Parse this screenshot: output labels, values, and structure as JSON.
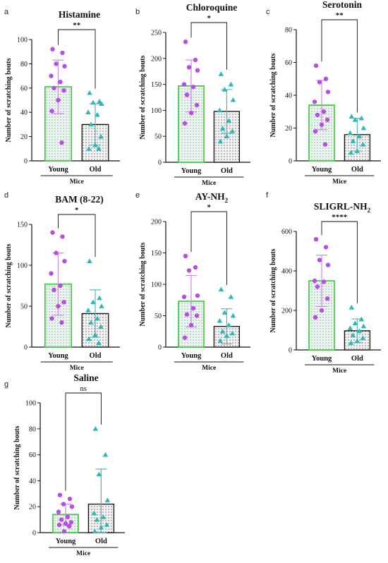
{
  "colors": {
    "young_bar_edge": "#33cc33",
    "young_bar_fill": "#e8f8e8",
    "young_dots": "#8f5fd6",
    "young_points": "#b64ee6",
    "old_bar_edge": "#111111",
    "old_bar_fill": "#f2f2f2",
    "old_dots": "#444444",
    "old_points": "#2bb8b8",
    "error_young": "#c98ae8",
    "error_old": "#5fb3b3"
  },
  "chart_data": [
    {
      "type": "bar",
      "panel": "a",
      "title": "Histamine",
      "ylabel": "Number of scratching bouts",
      "xlabel": "Mice",
      "categories": [
        "Young",
        "Old"
      ],
      "ylim": [
        0,
        100
      ],
      "yticks": [
        0,
        20,
        40,
        60,
        80,
        100
      ],
      "values": [
        61,
        30
      ],
      "errors": [
        22,
        17
      ],
      "significance": "**",
      "points": [
        [
          92,
          89,
          80,
          78,
          70,
          65,
          60,
          58,
          50,
          41,
          15
        ],
        [
          56,
          49,
          48,
          47,
          40,
          38,
          30,
          20,
          13,
          10,
          10
        ]
      ]
    },
    {
      "type": "bar",
      "panel": "b",
      "title": "Chloroquine",
      "ylabel": "Number of scratching bouts",
      "xlabel": "Mice",
      "categories": [
        "Young",
        "Old"
      ],
      "ylim": [
        0,
        250
      ],
      "yticks": [
        0,
        50,
        100,
        150,
        200,
        250
      ],
      "values": [
        147,
        98
      ],
      "errors": [
        50,
        42
      ],
      "significance": "*",
      "points": [
        [
          232,
          197,
          183,
          177,
          150,
          145,
          130,
          110,
          95,
          75
        ],
        [
          170,
          150,
          140,
          120,
          100,
          80,
          65,
          60,
          50,
          40
        ]
      ]
    },
    {
      "type": "bar",
      "panel": "c",
      "title": "Serotonin",
      "ylabel": "Number of scratching bouts",
      "xlabel": "Mice",
      "categories": [
        "Young",
        "Old"
      ],
      "ylim": [
        0,
        80
      ],
      "yticks": [
        0,
        20,
        40,
        60,
        80
      ],
      "values": [
        34,
        16
      ],
      "errors": [
        15,
        10
      ],
      "significance": "**",
      "points": [
        [
          58,
          50,
          48,
          42,
          36,
          30,
          28,
          25,
          22,
          18,
          10
        ],
        [
          27,
          26,
          25,
          20,
          17,
          15,
          12,
          10,
          6,
          5
        ]
      ]
    },
    {
      "type": "bar",
      "panel": "d",
      "title": "BAM (8-22)",
      "ylabel": "Number of scratching bouts",
      "xlabel": "Mice",
      "categories": [
        "Young",
        "Old"
      ],
      "ylim": [
        0,
        150
      ],
      "yticks": [
        0,
        50,
        100,
        150
      ],
      "values": [
        77,
        41
      ],
      "errors": [
        38,
        29
      ],
      "significance": "*",
      "points": [
        [
          140,
          135,
          115,
          105,
          90,
          75,
          70,
          55,
          50,
          35,
          30
        ],
        [
          105,
          60,
          55,
          50,
          45,
          35,
          30,
          25,
          15,
          10,
          5
        ]
      ]
    },
    {
      "type": "bar",
      "panel": "e",
      "title": "AY-NH",
      "title_sub": "2",
      "ylabel": "Number of scratching bouts",
      "xlabel": "Mice",
      "categories": [
        "Young",
        "Old"
      ],
      "ylim": [
        0,
        200
      ],
      "yticks": [
        0,
        50,
        100,
        150,
        200
      ],
      "values": [
        73,
        33
      ],
      "errors": [
        41,
        28
      ],
      "significance": "*",
      "points": [
        [
          145,
          127,
          122,
          82,
          80,
          62,
          52,
          50,
          35,
          15
        ],
        [
          92,
          80,
          55,
          50,
          42,
          35,
          25,
          22,
          18,
          10
        ]
      ]
    },
    {
      "type": "bar",
      "panel": "f",
      "title": "SLIGRL-NH",
      "title_sub": "2",
      "ylabel": "Number of scratching bouts",
      "xlabel": "Mice",
      "categories": [
        "Young",
        "Old"
      ],
      "ylim": [
        0,
        600
      ],
      "yticks": [
        0,
        200,
        400,
        600
      ],
      "values": [
        350,
        97
      ],
      "errors": [
        130,
        60
      ],
      "significance": "****",
      "points": [
        [
          560,
          520,
          455,
          430,
          350,
          345,
          320,
          260,
          200,
          165
        ],
        [
          215,
          155,
          135,
          120,
          110,
          95,
          75,
          60,
          45,
          35
        ]
      ]
    },
    {
      "type": "bar",
      "panel": "g",
      "title": "Saline",
      "ylabel": "Number of scratching bouts",
      "xlabel": "Mice",
      "categories": [
        "Young",
        "Old"
      ],
      "ylim": [
        0,
        100
      ],
      "yticks": [
        0,
        20,
        40,
        60,
        80,
        100
      ],
      "values": [
        14,
        22
      ],
      "errors": [
        8,
        27
      ],
      "significance": "ns",
      "points": [
        [
          29,
          26,
          22,
          20,
          16,
          12,
          10,
          8,
          7,
          6,
          5,
          1
        ],
        [
          80,
          60,
          45,
          25,
          15,
          12,
          10,
          6,
          4,
          1
        ]
      ]
    }
  ]
}
